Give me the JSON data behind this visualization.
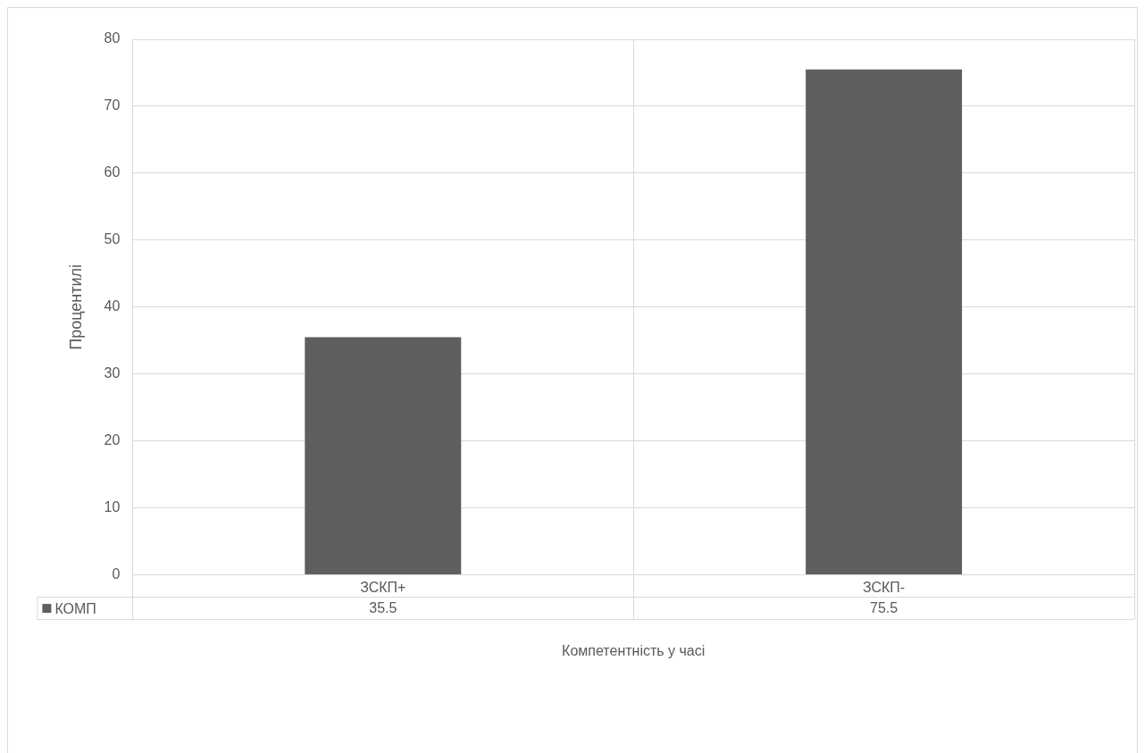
{
  "chart_data": {
    "type": "bar",
    "xlabel": "Компетентність у часі",
    "ylabel": "Процентилі",
    "categories": [
      "ЗСКП+",
      "ЗСКП-"
    ],
    "series": [
      {
        "name": "КОМП",
        "color": "#5f5f5f",
        "values": [
          35.5,
          75.5
        ]
      }
    ],
    "ylim": [
      0,
      80
    ],
    "yticks": [
      0,
      10,
      20,
      30,
      40,
      50,
      60,
      70,
      80
    ],
    "grid": true,
    "legend": "bottom",
    "data_labels": true
  }
}
